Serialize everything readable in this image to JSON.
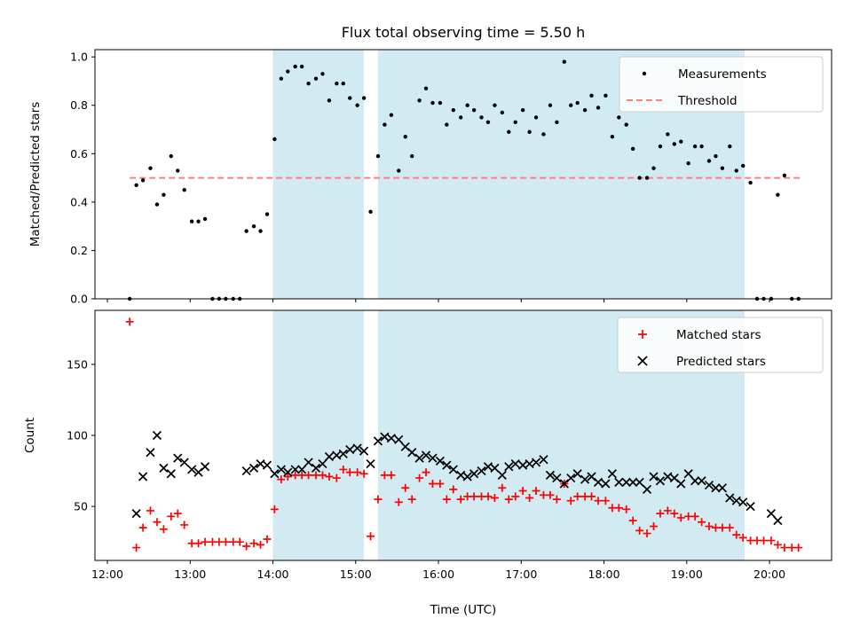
{
  "chart_data": {
    "type": "scatter",
    "title": "Flux total observing time = 5.50 h",
    "xlabel": "Time (UTC)",
    "x_unit": "hours (UTC)",
    "xlim": [
      11.85,
      20.75
    ],
    "x_ticks": [
      12,
      13,
      14,
      15,
      16,
      17,
      18,
      19,
      20
    ],
    "x_tick_labels": [
      "12:00",
      "13:00",
      "14:00",
      "15:00",
      "16:00",
      "17:00",
      "18:00",
      "19:00",
      "20:00"
    ],
    "shaded_intervals": [
      [
        14.0,
        15.1
      ],
      [
        15.27,
        19.7
      ]
    ],
    "shade_color": "#add8e6",
    "panels": [
      {
        "ylabel": "Matched/Predicted stars",
        "ylim": [
          0,
          1.03
        ],
        "y_ticks": [
          0.0,
          0.2,
          0.4,
          0.6,
          0.8,
          1.0
        ],
        "y_tick_labels": [
          "0.0",
          "0.2",
          "0.4",
          "0.6",
          "0.8",
          "1.0"
        ],
        "threshold": {
          "value": 0.5,
          "x_range": [
            12.27,
            20.37
          ],
          "color": "#ff7f7f",
          "label": "Threshold"
        },
        "legend": {
          "position": "top-right",
          "entries": [
            "Measurements",
            "Threshold"
          ]
        },
        "series": [
          {
            "name": "Measurements",
            "marker": "dot",
            "color": "#000000",
            "x": [
              12.27,
              12.35,
              12.43,
              12.52,
              12.6,
              12.68,
              12.77,
              12.85,
              12.93,
              13.02,
              13.1,
              13.18,
              13.27,
              13.35,
              13.43,
              13.52,
              13.6,
              13.68,
              13.77,
              13.85,
              13.93,
              14.02,
              14.1,
              14.18,
              14.27,
              14.35,
              14.43,
              14.52,
              14.6,
              14.68,
              14.77,
              14.85,
              14.93,
              15.02,
              15.1,
              15.18,
              15.27,
              15.35,
              15.43,
              15.52,
              15.6,
              15.68,
              15.77,
              15.85,
              15.93,
              16.02,
              16.1,
              16.18,
              16.27,
              16.35,
              16.43,
              16.52,
              16.6,
              16.68,
              16.77,
              16.85,
              16.93,
              17.02,
              17.1,
              17.18,
              17.27,
              17.35,
              17.43,
              17.52,
              17.6,
              17.68,
              17.77,
              17.85,
              17.93,
              18.02,
              18.1,
              18.18,
              18.27,
              18.35,
              18.43,
              18.52,
              18.6,
              18.68,
              18.77,
              18.85,
              18.93,
              19.02,
              19.1,
              19.18,
              19.27,
              19.35,
              19.43,
              19.52,
              19.6,
              19.68,
              19.77,
              19.85,
              19.93,
              20.02,
              20.1,
              20.18,
              20.27,
              20.35
            ],
            "y": [
              0.0,
              0.47,
              0.49,
              0.54,
              0.39,
              0.43,
              0.59,
              0.53,
              0.45,
              0.32,
              0.32,
              0.33,
              0.0,
              0.0,
              0.0,
              0.0,
              0.0,
              0.28,
              0.3,
              0.28,
              0.35,
              0.66,
              0.91,
              0.94,
              0.96,
              0.96,
              0.89,
              0.91,
              0.93,
              0.82,
              0.89,
              0.89,
              0.83,
              0.8,
              0.83,
              0.36,
              0.59,
              0.72,
              0.76,
              0.53,
              0.67,
              0.59,
              0.82,
              0.87,
              0.81,
              0.81,
              0.72,
              0.78,
              0.75,
              0.8,
              0.78,
              0.75,
              0.73,
              0.8,
              0.77,
              0.69,
              0.73,
              0.78,
              0.69,
              0.75,
              0.68,
              0.8,
              0.73,
              0.98,
              0.8,
              0.81,
              0.78,
              0.84,
              0.79,
              0.84,
              0.67,
              0.75,
              0.72,
              0.62,
              0.5,
              0.5,
              0.54,
              0.63,
              0.68,
              0.64,
              0.65,
              0.56,
              0.63,
              0.63,
              0.57,
              0.59,
              0.54,
              0.63,
              0.53,
              0.55,
              0.48,
              0.0,
              0.0,
              0.0,
              0.43,
              0.51,
              0.0,
              0.0
            ]
          }
        ]
      },
      {
        "ylabel": "Count",
        "ylim": [
          12,
          188
        ],
        "y_ticks": [
          50,
          100,
          150
        ],
        "y_tick_labels": [
          "50",
          "100",
          "150"
        ],
        "legend": {
          "position": "top-right",
          "entries": [
            "Matched stars",
            "Predicted stars"
          ]
        },
        "series": [
          {
            "name": "Matched stars",
            "marker": "plus",
            "color": "#ff0000",
            "x": [
              12.27,
              12.35,
              12.43,
              12.52,
              12.6,
              12.68,
              12.77,
              12.85,
              12.93,
              13.02,
              13.1,
              13.18,
              13.27,
              13.35,
              13.43,
              13.52,
              13.6,
              13.68,
              13.77,
              13.85,
              13.93,
              14.02,
              14.1,
              14.18,
              14.27,
              14.35,
              14.43,
              14.52,
              14.6,
              14.68,
              14.77,
              14.85,
              14.93,
              15.02,
              15.1,
              15.18,
              15.27,
              15.35,
              15.43,
              15.52,
              15.6,
              15.68,
              15.77,
              15.85,
              15.93,
              16.02,
              16.1,
              16.18,
              16.27,
              16.35,
              16.43,
              16.52,
              16.6,
              16.68,
              16.77,
              16.85,
              16.93,
              17.02,
              17.1,
              17.18,
              17.27,
              17.35,
              17.43,
              17.52,
              17.6,
              17.68,
              17.77,
              17.85,
              17.93,
              18.02,
              18.1,
              18.18,
              18.27,
              18.35,
              18.43,
              18.52,
              18.6,
              18.68,
              18.77,
              18.85,
              18.93,
              19.02,
              19.1,
              19.18,
              19.27,
              19.35,
              19.43,
              19.52,
              19.6,
              19.68,
              19.77,
              19.85,
              19.93,
              20.02,
              20.1,
              20.18,
              20.27,
              20.35
            ],
            "y": [
              180,
              21,
              35,
              47,
              39,
              34,
              43,
              45,
              37,
              24,
              24,
              25,
              25,
              25,
              25,
              25,
              25,
              22,
              24,
              23,
              27,
              48,
              69,
              71,
              72,
              72,
              72,
              72,
              72,
              71,
              70,
              76,
              74,
              74,
              73,
              29,
              55,
              72,
              72,
              53,
              63,
              55,
              70,
              74,
              66,
              66,
              55,
              62,
              55,
              57,
              57,
              57,
              57,
              56,
              63,
              55,
              57,
              61,
              56,
              61,
              58,
              58,
              55,
              66,
              54,
              57,
              57,
              57,
              54,
              54,
              49,
              49,
              48,
              40,
              33,
              31,
              36,
              45,
              47,
              45,
              42,
              43,
              43,
              39,
              36,
              35,
              35,
              35,
              30,
              28,
              26,
              26,
              26,
              26,
              23,
              21,
              21,
              21
            ]
          },
          {
            "name": "Predicted stars",
            "marker": "x",
            "color": "#000000",
            "x": [
              12.35,
              12.43,
              12.52,
              12.6,
              12.68,
              12.77,
              12.85,
              12.93,
              13.02,
              13.1,
              13.18,
              13.68,
              13.77,
              13.85,
              13.93,
              14.02,
              14.1,
              14.18,
              14.27,
              14.35,
              14.43,
              14.52,
              14.6,
              14.68,
              14.77,
              14.85,
              14.93,
              15.02,
              15.1,
              15.18,
              15.27,
              15.35,
              15.43,
              15.52,
              15.6,
              15.68,
              15.77,
              15.85,
              15.93,
              16.02,
              16.1,
              16.18,
              16.27,
              16.35,
              16.43,
              16.52,
              16.6,
              16.68,
              16.77,
              16.85,
              16.93,
              17.02,
              17.1,
              17.18,
              17.27,
              17.35,
              17.43,
              17.52,
              17.6,
              17.68,
              17.77,
              17.85,
              17.93,
              18.02,
              18.1,
              18.18,
              18.27,
              18.35,
              18.43,
              18.52,
              18.6,
              18.68,
              18.77,
              18.85,
              18.93,
              19.02,
              19.1,
              19.18,
              19.27,
              19.35,
              19.43,
              19.52,
              19.6,
              19.68,
              19.77,
              20.02,
              20.1
            ],
            "y": [
              45,
              71,
              88,
              100,
              77,
              73,
              84,
              81,
              76,
              74,
              78,
              75,
              77,
              80,
              79,
              73,
              76,
              74,
              76,
              76,
              81,
              77,
              80,
              85,
              86,
              87,
              90,
              91,
              89,
              80,
              96,
              99,
              98,
              97,
              92,
              88,
              84,
              86,
              84,
              82,
              79,
              76,
              72,
              71,
              73,
              75,
              78,
              77,
              72,
              78,
              80,
              79,
              80,
              81,
              83,
              72,
              70,
              66,
              70,
              73,
              69,
              71,
              67,
              66,
              73,
              67,
              67,
              67,
              67,
              62,
              71,
              68,
              71,
              70,
              66,
              73,
              68,
              68,
              65,
              63,
              63,
              56,
              54,
              53,
              50,
              45,
              40
            ]
          }
        ]
      }
    ]
  }
}
